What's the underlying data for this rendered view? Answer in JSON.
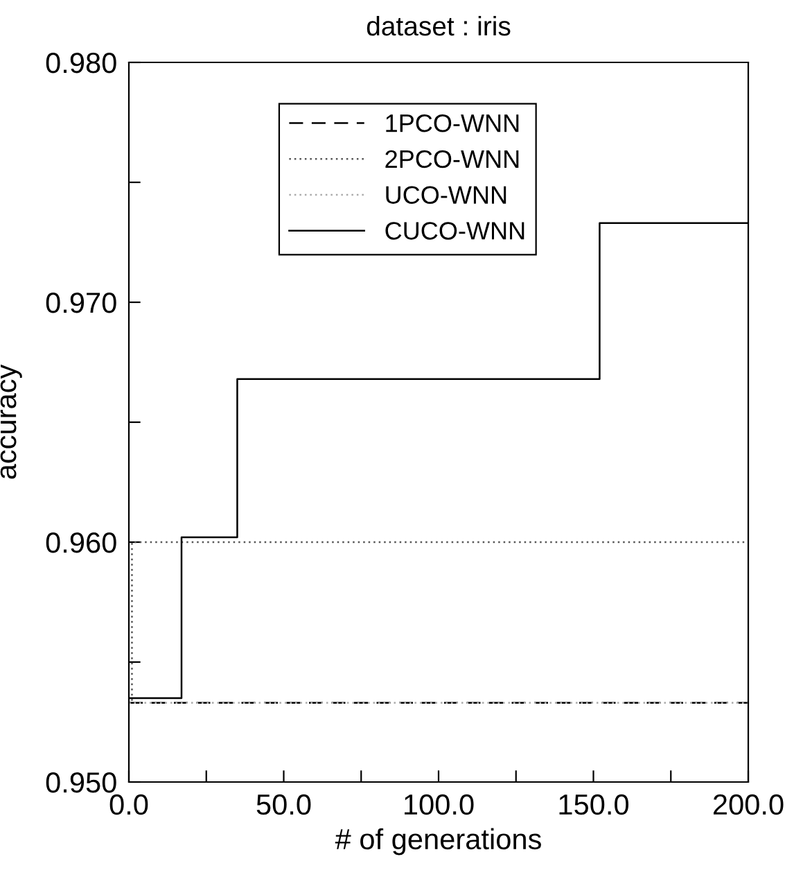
{
  "chart_data": {
    "type": "step",
    "title": "dataset : iris",
    "xlabel": "# of generations",
    "ylabel": "accuracy",
    "series": [
      {
        "name": "1PCO-WNN",
        "color": "#000000",
        "line_style": "dashed",
        "x": [
          0,
          200
        ],
        "values": [
          0.9533,
          0.9533
        ]
      },
      {
        "name": "2PCO-WNN",
        "color": "#555555",
        "line_style": "dotted",
        "x": [
          0,
          1,
          200
        ],
        "values": [
          0.9533,
          0.96,
          0.96
        ]
      },
      {
        "name": "UCO-WNN",
        "color": "#aaaaaa",
        "line_style": "dotted",
        "x": [
          0,
          200
        ],
        "values": [
          0.9533,
          0.9533
        ]
      },
      {
        "name": "CUCO-WNN",
        "color": "#000000",
        "line_style": "solid",
        "x": [
          0,
          17,
          35,
          152,
          200
        ],
        "values": [
          0.9535,
          0.9602,
          0.9668,
          0.9733,
          0.9733
        ]
      }
    ],
    "xlim": [
      0,
      200
    ],
    "ylim": [
      0.95,
      0.98
    ],
    "xticks": [
      {
        "value": 0,
        "label": "0.0"
      },
      {
        "value": 25,
        "label": null
      },
      {
        "value": 50,
        "label": "50.0"
      },
      {
        "value": 75,
        "label": null
      },
      {
        "value": 100,
        "label": "100.0"
      },
      {
        "value": 125,
        "label": null
      },
      {
        "value": 150,
        "label": "150.0"
      },
      {
        "value": 175,
        "label": null
      },
      {
        "value": 200,
        "label": "200.0"
      }
    ],
    "yticks": [
      {
        "value": 0.95,
        "label": "0.950"
      },
      {
        "value": 0.955,
        "label": null
      },
      {
        "value": 0.96,
        "label": "0.960"
      },
      {
        "value": 0.965,
        "label": null
      },
      {
        "value": 0.97,
        "label": "0.970"
      },
      {
        "value": 0.975,
        "label": null
      },
      {
        "value": 0.98,
        "label": "0.980"
      }
    ],
    "grid": false,
    "legend": "top"
  }
}
